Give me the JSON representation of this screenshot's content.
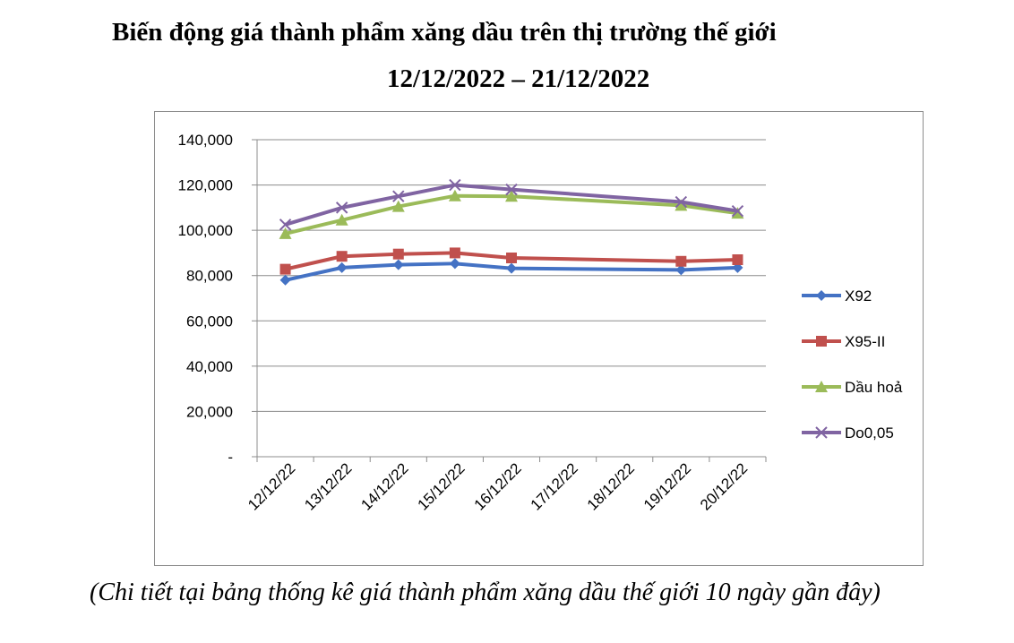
{
  "chart_data": {
    "type": "line",
    "title": "Biến động giá thành phẩm xăng dầu trên thị trường thế giới",
    "subtitle": "12/12/2022 – 21/12/2022",
    "categories": [
      "12/12/22",
      "13/12/22",
      "14/12/22",
      "15/12/22",
      "16/12/22",
      "17/12/22",
      "18/12/22",
      "19/12/22",
      "20/12/22"
    ],
    "y_tick_labels": [
      "-",
      "20,000",
      "40,000",
      "60,000",
      "80,000",
      "100,000",
      "120,000",
      "140,000"
    ],
    "ylim": [
      0,
      140000
    ],
    "grid": true,
    "legend_position": "right",
    "series": [
      {
        "name": "X92",
        "color": "#4472c4",
        "marker": "diamond",
        "values": [
          78000,
          83500,
          84800,
          85300,
          83200,
          null,
          null,
          82500,
          83500
        ]
      },
      {
        "name": "X95-II",
        "color": "#c0504d",
        "marker": "square",
        "values": [
          82800,
          88500,
          89500,
          90000,
          87800,
          null,
          null,
          86300,
          87000
        ]
      },
      {
        "name": "Dầu hoả",
        "color": "#9bbb59",
        "marker": "triangle",
        "values": [
          98500,
          104500,
          110500,
          115200,
          115000,
          null,
          null,
          111000,
          107500
        ]
      },
      {
        "name": "Do0,05",
        "color": "#8064a2",
        "marker": "x",
        "values": [
          102500,
          110000,
          115000,
          120000,
          118000,
          null,
          null,
          112500,
          108500
        ]
      }
    ]
  },
  "caption": "(Chi tiết tại bảng thống kê giá thành phẩm xăng dầu thế giới 10 ngày gần đây)"
}
